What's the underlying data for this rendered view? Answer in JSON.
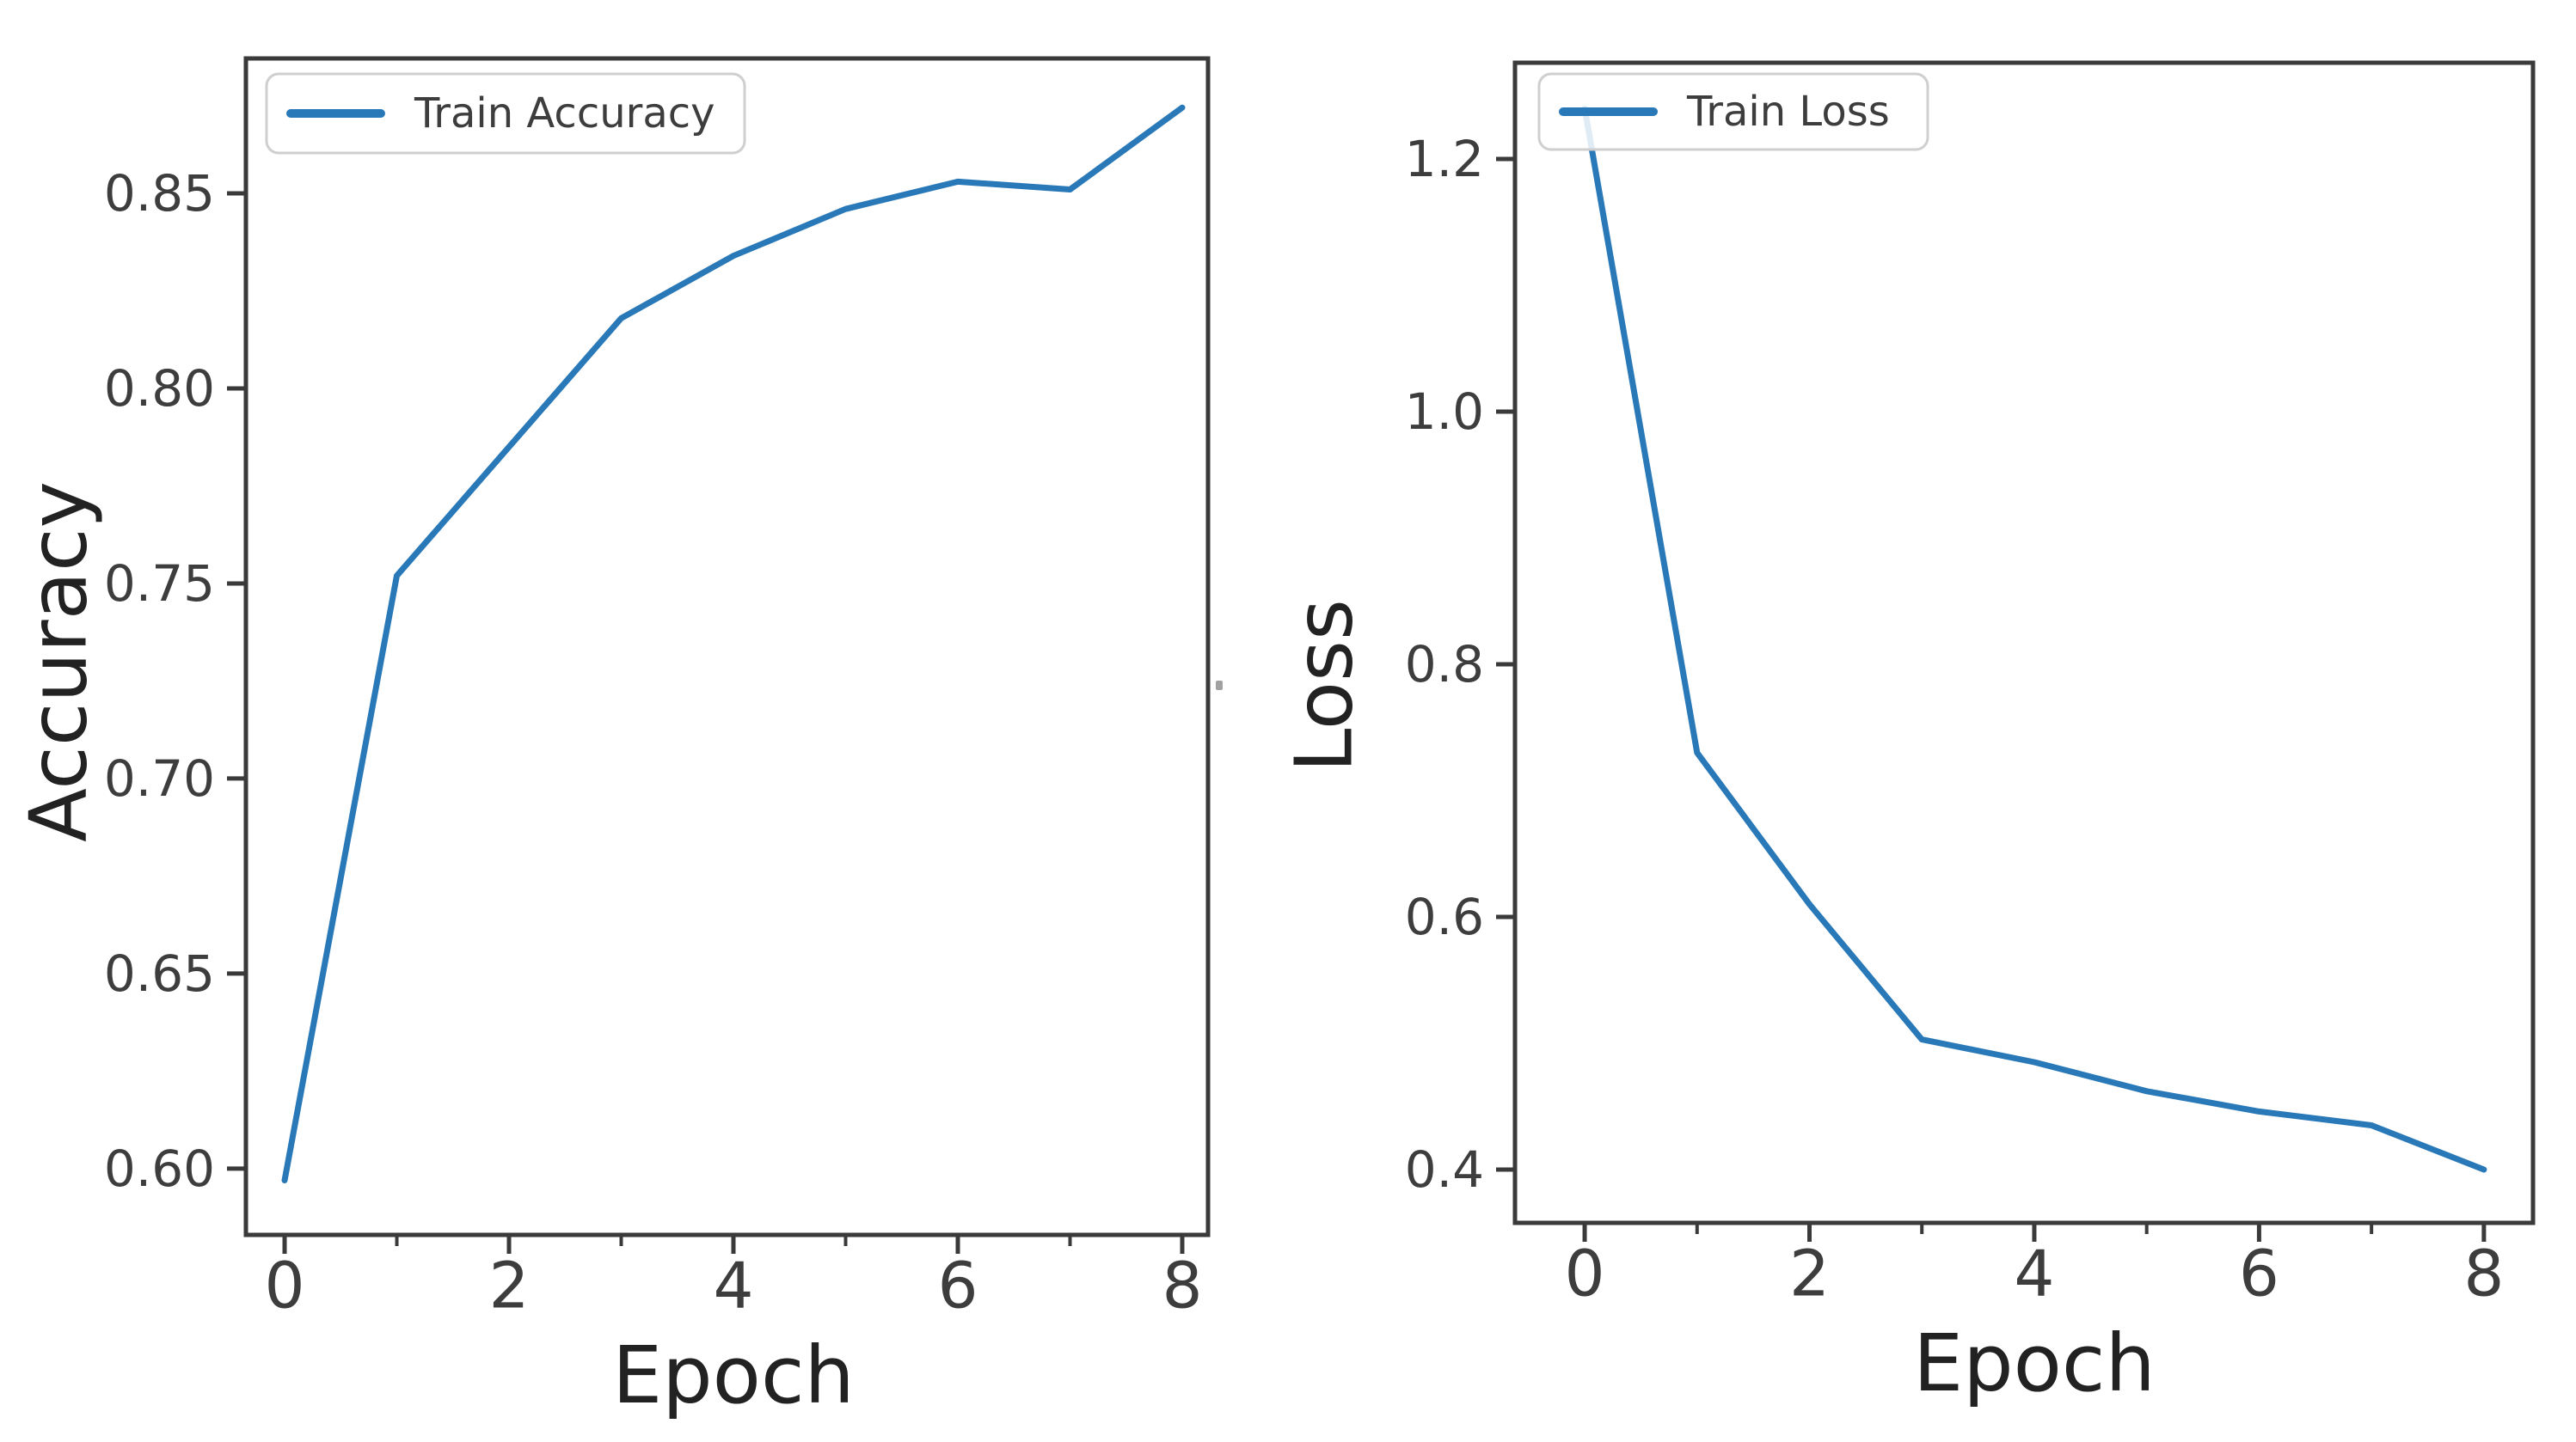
{
  "figure": {
    "background": "#ffffff",
    "line_color": "#2979b9",
    "axis_color": "#3a3a3a",
    "tick_label_color": "#3d3d3d",
    "axis_label_color": "#222222",
    "legend_border_color": "#cfcfcf",
    "legend_text_color": "#3d3d3d"
  },
  "chart_data": [
    {
      "type": "line",
      "id": "train-accuracy",
      "title": "",
      "xlabel": "Epoch",
      "ylabel": "Accuracy",
      "legend": {
        "entries": [
          "Train Accuracy"
        ],
        "position": "upper left"
      },
      "x": [
        0,
        1,
        2,
        3,
        4,
        5,
        6,
        7,
        8
      ],
      "series": [
        {
          "name": "Train Accuracy",
          "values": [
            0.597,
            0.752,
            0.785,
            0.818,
            0.834,
            0.846,
            0.853,
            0.851,
            0.872
          ]
        }
      ],
      "x_ticks": {
        "major": [
          0,
          2,
          4,
          6,
          8
        ],
        "labels": [
          "0",
          "2",
          "4",
          "6",
          "8"
        ],
        "minor": [
          1,
          3,
          5,
          7
        ]
      },
      "y_ticks": {
        "values": [
          0.6,
          0.65,
          0.7,
          0.75,
          0.8,
          0.85
        ],
        "labels": [
          "0.60",
          "0.65",
          "0.70",
          "0.75",
          "0.80",
          "0.85"
        ]
      },
      "xlim": [
        -0.345,
        8.23
      ],
      "ylim": [
        0.583,
        0.8846
      ],
      "grid": false
    },
    {
      "type": "line",
      "id": "train-loss",
      "title": "",
      "xlabel": "Epoch",
      "ylabel": "Loss",
      "legend": {
        "entries": [
          "Train Loss"
        ],
        "position": "upper left"
      },
      "x": [
        0,
        1,
        2,
        3,
        4,
        5,
        6,
        7,
        8
      ],
      "series": [
        {
          "name": "Train Loss",
          "values": [
            1.24,
            0.73,
            0.61,
            0.503,
            0.485,
            0.462,
            0.446,
            0.435,
            0.4
          ]
        }
      ],
      "x_ticks": {
        "major": [
          0,
          2,
          4,
          6,
          8
        ],
        "labels": [
          "0",
          "2",
          "4",
          "6",
          "8"
        ],
        "minor": [
          1,
          3,
          5,
          7
        ]
      },
      "y_ticks": {
        "values": [
          0.4,
          0.6,
          0.8,
          1.0,
          1.2
        ],
        "labels": [
          "0.4",
          "0.6",
          "0.8",
          "1.0",
          "1.2"
        ]
      },
      "xlim": [
        -0.62,
        8.437
      ],
      "ylim": [
        0.3578,
        1.2762
      ],
      "grid": false
    }
  ]
}
